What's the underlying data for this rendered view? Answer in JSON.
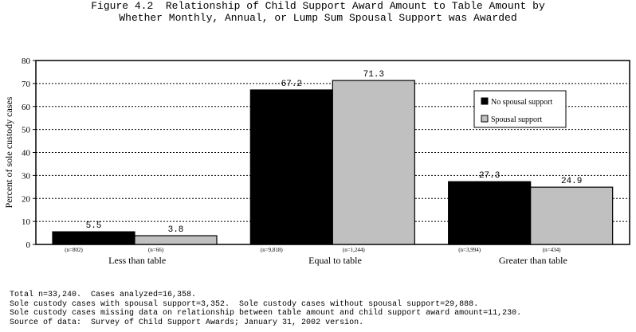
{
  "title_lines": [
    "Figure 4.2  Relationship of Child Support Award Amount to Table Amount by",
    "Whether Monthly, Annual, or Lump Sum Spousal Support was Awarded"
  ],
  "chart_data": {
    "type": "bar",
    "ylabel": "Percent of sole custody cases",
    "xlabel": "",
    "ylim": [
      0,
      80
    ],
    "yticks": [
      0,
      10,
      20,
      30,
      40,
      50,
      60,
      70,
      80
    ],
    "grid": true,
    "legend_position": "right",
    "categories": [
      "Less than table",
      "Equal to table",
      "Greater than table"
    ],
    "series": [
      {
        "name": "No spousal support",
        "color": "#000000",
        "values": [
          5.5,
          67.2,
          27.3
        ],
        "value_labels": [
          "5.5",
          "67.2",
          "27.3"
        ],
        "n_labels": [
          "(n=802)",
          "(n=9,818)",
          "(n=3,994)"
        ]
      },
      {
        "name": "Spousal support",
        "color": "#c0c0c0",
        "values": [
          3.8,
          71.3,
          24.9
        ],
        "value_labels": [
          "3.8",
          "71.3",
          "24.9"
        ],
        "n_labels": [
          "(n=66)",
          "(n=1,244)",
          "(n=434)"
        ]
      }
    ]
  },
  "notes": [
    "Total n=33,240.  Cases analyzed=16,358.",
    "Sole custody cases with spousal support=3,352.  Sole custody cases without spousal support=29,888.",
    "Sole custody cases missing data on relationship between table amount and child support award amount=11,230.",
    "Source of data:  Survey of Child Support Awards; January 31, 2002 version."
  ]
}
